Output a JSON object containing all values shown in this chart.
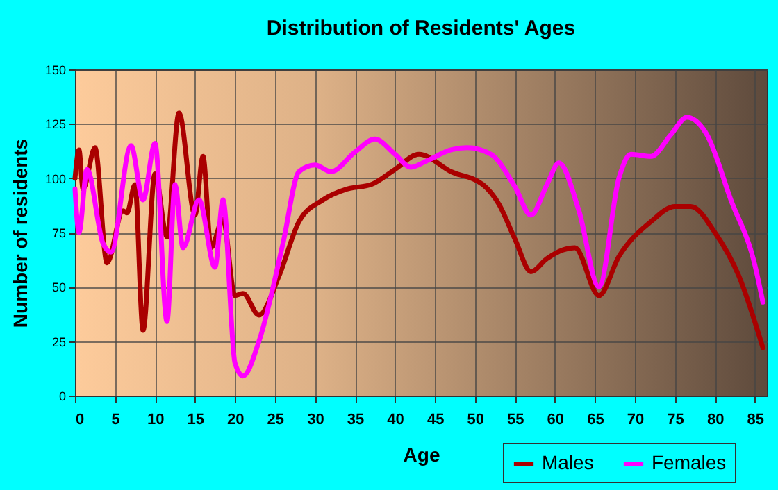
{
  "chart_data": {
    "type": "line",
    "title": "Distribution of Residents' Ages",
    "xlabel": "Age",
    "ylabel": "Number of residents",
    "xlim": [
      0,
      86.5
    ],
    "xticks": [
      0,
      5,
      10,
      15,
      20,
      25,
      30,
      35,
      40,
      45,
      50,
      55,
      60,
      65,
      70,
      75,
      80,
      85
    ],
    "ylim": [
      0,
      150
    ],
    "yticks": [
      0,
      25,
      50,
      75,
      100,
      125,
      150
    ],
    "grid": true,
    "legend": "bottom right",
    "series": [
      {
        "name": "Males",
        "color": "#aa0000",
        "x": [
          0,
          0.5,
          1,
          2.5,
          4,
          6,
          6.5,
          7.5,
          8.5,
          10,
          11.5,
          13,
          15,
          16,
          17,
          18.5,
          20,
          21,
          23,
          25.5,
          28,
          31,
          34,
          37,
          40,
          43,
          47,
          51,
          53,
          55,
          57,
          59,
          61,
          62.5,
          65.5,
          68,
          72,
          75,
          77,
          80,
          83,
          86
        ],
        "values": [
          100,
          113,
          95,
          114,
          61,
          85,
          84,
          97,
          30,
          102,
          73,
          130,
          83,
          110,
          68,
          81,
          46,
          47,
          37,
          55,
          80,
          90,
          95,
          97,
          104,
          111,
          103,
          97,
          88,
          72,
          57,
          63,
          67,
          68,
          46,
          64,
          80,
          87,
          87,
          75,
          55,
          22
        ]
      },
      {
        "name": "Females",
        "color": "#ff00ff",
        "x": [
          0,
          0.5,
          1.5,
          3.5,
          4.5,
          7,
          8.5,
          10,
          11.5,
          12.5,
          13.5,
          15.5,
          17.5,
          18.5,
          20,
          21,
          23,
          26,
          28,
          30,
          32,
          35,
          37.5,
          40,
          42,
          44,
          47,
          49,
          52,
          55,
          57,
          59,
          60.5,
          63,
          65.5,
          68,
          69.5,
          72,
          74.5,
          76.5,
          79,
          82,
          85,
          86
        ],
        "values": [
          95,
          75,
          104,
          70,
          66,
          115,
          90,
          116,
          34,
          97,
          68,
          90,
          59,
          90,
          15,
          9,
          25,
          70,
          103,
          106,
          103,
          112,
          118,
          111,
          105,
          108,
          113,
          114,
          111,
          96,
          83,
          97,
          107,
          85,
          50,
          100,
          111,
          110,
          120,
          128,
          120,
          90,
          60,
          43
        ]
      }
    ]
  }
}
